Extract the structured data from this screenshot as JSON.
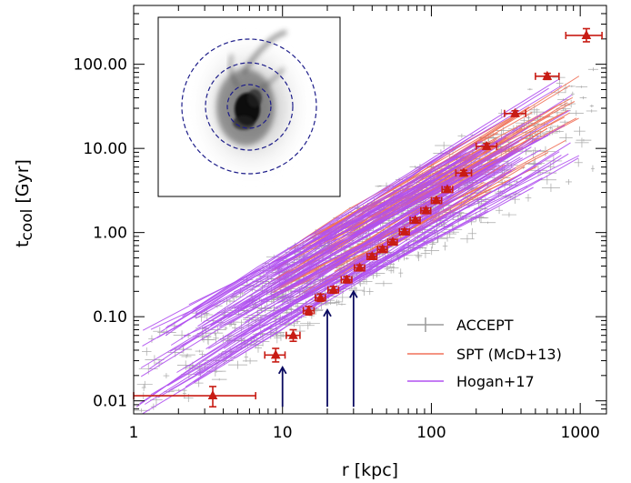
{
  "chart_data": {
    "type": "scatter",
    "xscale": "log",
    "yscale": "log",
    "xlim": [
      1,
      1500
    ],
    "ylim": [
      0.007,
      500
    ],
    "xlabel": "r  [kpc]",
    "ylabel_main": "t",
    "ylabel_sub": "cool",
    "ylabel_unit": "[Gyr]",
    "x_ticks": [
      {
        "v": 1,
        "label": "1"
      },
      {
        "v": 10,
        "label": "10"
      },
      {
        "v": 100,
        "label": "100"
      },
      {
        "v": 1000,
        "label": "1000"
      }
    ],
    "y_ticks": [
      {
        "v": 0.01,
        "label": "0.01"
      },
      {
        "v": 0.1,
        "label": "0.10"
      },
      {
        "v": 1,
        "label": "1.00"
      },
      {
        "v": 10,
        "label": "10.00"
      },
      {
        "v": 100,
        "label": "100.00"
      }
    ],
    "legend_position": "bottom-right",
    "series": [
      {
        "name": "ACCEPT",
        "color": "#a6a6a6",
        "style": "errorbar-points"
      },
      {
        "name": "SPT (McD+13)",
        "color": "#f07058",
        "style": "lines"
      },
      {
        "name": "Hogan+17",
        "color": "#b050f0",
        "style": "lines"
      },
      {
        "color": "#c81c14",
        "style": "binned-points",
        "points": [
          {
            "x": 3.4,
            "y": 0.0115,
            "xlo": 1.0,
            "xhi": 6.6,
            "ylo": 0.0085,
            "yhi": 0.0148
          },
          {
            "x": 9.0,
            "y": 0.035,
            "xlo": 7.6,
            "xhi": 10.4,
            "ylo": 0.029,
            "yhi": 0.042
          },
          {
            "x": 11.8,
            "y": 0.06,
            "xlo": 10.6,
            "xhi": 13.1,
            "ylo": 0.051,
            "yhi": 0.07
          },
          {
            "x": 15.0,
            "y": 0.118,
            "xlo": 13.8,
            "xhi": 16.3,
            "ylo": 0.105,
            "yhi": 0.132
          },
          {
            "x": 18.0,
            "y": 0.168,
            "xlo": 16.6,
            "xhi": 19.4,
            "ylo": 0.152,
            "yhi": 0.186
          },
          {
            "x": 22.0,
            "y": 0.208,
            "xlo": 20.2,
            "xhi": 23.8,
            "ylo": 0.19,
            "yhi": 0.228
          },
          {
            "x": 27.0,
            "y": 0.275,
            "xlo": 24.8,
            "xhi": 29.2,
            "ylo": 0.252,
            "yhi": 0.3
          },
          {
            "x": 33.0,
            "y": 0.38,
            "xlo": 30.4,
            "xhi": 35.6,
            "ylo": 0.35,
            "yhi": 0.412
          },
          {
            "x": 40.0,
            "y": 0.52,
            "xlo": 37.0,
            "xhi": 43.0,
            "ylo": 0.48,
            "yhi": 0.56
          },
          {
            "x": 47.0,
            "y": 0.63,
            "xlo": 43.5,
            "xhi": 50.5,
            "ylo": 0.58,
            "yhi": 0.68
          },
          {
            "x": 55.0,
            "y": 0.77,
            "xlo": 51.0,
            "xhi": 59.0,
            "ylo": 0.71,
            "yhi": 0.83
          },
          {
            "x": 66.0,
            "y": 1.02,
            "xlo": 61.0,
            "xhi": 71.0,
            "ylo": 0.95,
            "yhi": 1.1
          },
          {
            "x": 78.0,
            "y": 1.4,
            "xlo": 72.0,
            "xhi": 84.0,
            "ylo": 1.3,
            "yhi": 1.5
          },
          {
            "x": 92.0,
            "y": 1.82,
            "xlo": 85.0,
            "xhi": 99.0,
            "ylo": 1.7,
            "yhi": 1.96
          },
          {
            "x": 108.0,
            "y": 2.4,
            "xlo": 100.0,
            "xhi": 117.0,
            "ylo": 2.24,
            "yhi": 2.58
          },
          {
            "x": 128.0,
            "y": 3.25,
            "xlo": 118.0,
            "xhi": 139.0,
            "ylo": 3.03,
            "yhi": 3.48
          },
          {
            "x": 165.0,
            "y": 5.1,
            "xlo": 146.0,
            "xhi": 186.0,
            "ylo": 4.7,
            "yhi": 5.5
          },
          {
            "x": 235.0,
            "y": 10.6,
            "xlo": 200.0,
            "xhi": 275.0,
            "ylo": 9.8,
            "yhi": 11.4
          },
          {
            "x": 365.0,
            "y": 26.0,
            "xlo": 310.0,
            "xhi": 430.0,
            "ylo": 24.0,
            "yhi": 28.0
          },
          {
            "x": 600.0,
            "y": 72.0,
            "xlo": 500.0,
            "xhi": 720.0,
            "ylo": 66.0,
            "yhi": 78.0
          },
          {
            "x": 1100.0,
            "y": 220.0,
            "xlo": 800.0,
            "xhi": 1400.0,
            "ylo": 185.0,
            "yhi": 265.0
          }
        ]
      }
    ],
    "arrows": [
      {
        "x": 10,
        "from_y": 0.0085,
        "to_y": 0.025
      },
      {
        "x": 20,
        "from_y": 0.0085,
        "to_y": 0.12
      },
      {
        "x": 30,
        "from_y": 0.0085,
        "to_y": 0.2
      }
    ],
    "arrow_color": "#0a0a60",
    "inset_ring_color": "#1e1e8a"
  }
}
